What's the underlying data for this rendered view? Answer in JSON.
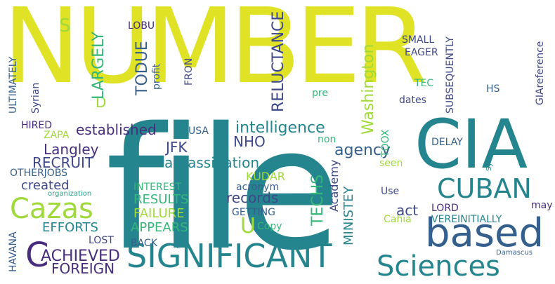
{
  "palette": {
    "yellow": "#dfe225",
    "teal": "#25858e",
    "green": "#35b779",
    "lime": "#9fda3a",
    "blue": "#355f8d",
    "darkblue": "#3f4889",
    "purple": "#472d7b",
    "violet": "#440154",
    "cyan": "#2a9f8a"
  },
  "words": [
    {
      "text": "NUMBER",
      "color": "yellow"
    },
    {
      "text": "file",
      "color": "teal"
    },
    {
      "text": "CIA",
      "color": "teal"
    },
    {
      "text": "based",
      "color": "blue"
    },
    {
      "text": "SIGNIFICANT",
      "color": "teal"
    },
    {
      "text": "Sciences",
      "color": "teal"
    },
    {
      "text": "CUBAN",
      "color": "teal"
    },
    {
      "text": "Cazas",
      "color": "lime"
    },
    {
      "text": "C",
      "color": "purple"
    },
    {
      "text": "ACHIEVED",
      "color": "purple"
    },
    {
      "text": "FOREIGN",
      "color": "purple"
    },
    {
      "text": "intelligence",
      "color": "teal"
    },
    {
      "text": "established",
      "color": "purple"
    },
    {
      "text": "assassination",
      "color": "teal"
    },
    {
      "text": "agency",
      "color": "blue"
    },
    {
      "text": "Langley",
      "color": "purple"
    },
    {
      "text": "RECRUIT",
      "color": "darkblue"
    },
    {
      "text": "JFK",
      "color": "darkblue"
    },
    {
      "text": "NHO",
      "color": "darkblue"
    },
    {
      "text": "created",
      "color": "darkblue"
    },
    {
      "text": "RESULTS",
      "color": "green"
    },
    {
      "text": "records",
      "color": "darkblue"
    },
    {
      "text": "FAILURE",
      "color": "lime"
    },
    {
      "text": "EFFORTS",
      "color": "teal"
    },
    {
      "text": "APPEARS",
      "color": "green"
    },
    {
      "text": "U",
      "color": "lime"
    },
    {
      "text": "act",
      "color": "darkblue"
    },
    {
      "text": "INTEREST",
      "color": "green"
    },
    {
      "text": "KUDAR",
      "color": "lime"
    },
    {
      "text": "acronym",
      "color": "blue"
    },
    {
      "text": "GETTING",
      "color": "blue"
    },
    {
      "text": "Copy",
      "color": "green"
    },
    {
      "text": "LOST",
      "color": "darkblue"
    },
    {
      "text": "BACK",
      "color": "blue"
    },
    {
      "text": "HIRED",
      "color": "purple"
    },
    {
      "text": "ZAPA",
      "color": "lime"
    },
    {
      "text": "OTHERJOBS",
      "color": "blue"
    },
    {
      "text": "organization",
      "color": "cyan"
    },
    {
      "text": "USA",
      "color": "blue"
    },
    {
      "text": "non",
      "color": "green"
    },
    {
      "text": "seen",
      "color": "lime"
    },
    {
      "text": "DELAY",
      "color": "blue"
    },
    {
      "text": "Use",
      "color": "darkblue"
    },
    {
      "text": "LORD",
      "color": "purple"
    },
    {
      "text": "may",
      "color": "purple"
    },
    {
      "text": "Cahia",
      "color": "lime"
    },
    {
      "text": "VEREINITIALLY",
      "color": "teal"
    },
    {
      "text": "Damascus",
      "color": "blue"
    },
    {
      "text": "SMALL",
      "color": "darkblue"
    },
    {
      "text": "EAGER",
      "color": "darkblue"
    },
    {
      "text": "TEC",
      "color": "green"
    },
    {
      "text": "HS",
      "color": "blue"
    },
    {
      "text": "dates",
      "color": "darkblue"
    },
    {
      "text": "pre",
      "color": "green"
    },
    {
      "text": "S",
      "color": "lime"
    },
    {
      "text": "D",
      "color": "lime"
    },
    {
      "text": "LOBU",
      "color": "purple"
    },
    {
      "text": "TODUE",
      "color": "blue"
    },
    {
      "text": "profit",
      "color": "blue"
    },
    {
      "text": "FRON",
      "color": "darkblue"
    },
    {
      "text": "LARGELY",
      "color": "green"
    },
    {
      "text": "ULTIMATELY",
      "color": "blue"
    },
    {
      "text": "Syrian",
      "color": "darkblue"
    },
    {
      "text": "RELUCTANCE",
      "color": "darkblue"
    },
    {
      "text": "Washington",
      "color": "lime"
    },
    {
      "text": "SUBSEQUENTLY",
      "color": "darkblue"
    },
    {
      "text": "GIAreference",
      "color": "darkblue"
    },
    {
      "text": "TOOX",
      "color": "green"
    },
    {
      "text": "Academy",
      "color": "darkblue"
    },
    {
      "text": "TECHS",
      "color": "green"
    },
    {
      "text": "MINISTEY",
      "color": "teal"
    },
    {
      "text": "Syria",
      "color": "teal"
    },
    {
      "text": "HAVANA",
      "color": "blue"
    }
  ]
}
